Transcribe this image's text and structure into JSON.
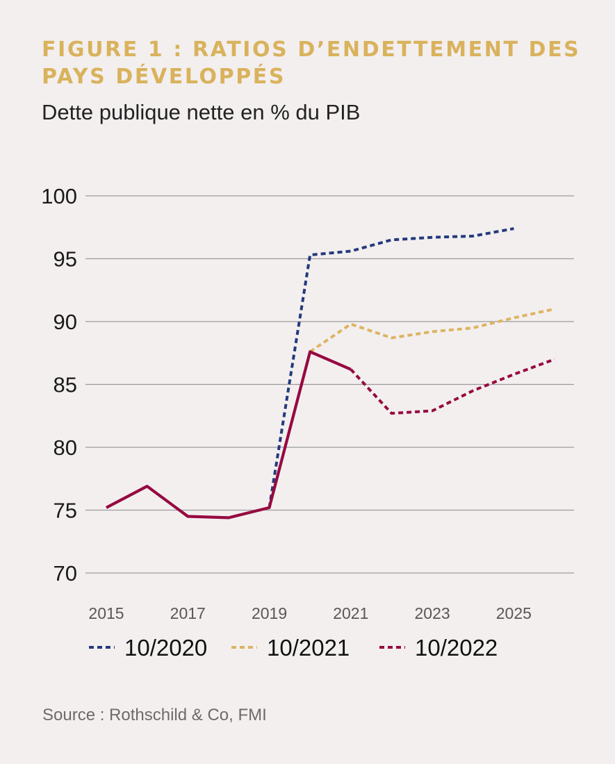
{
  "title": "FIGURE 1 : RATIOS D’ENDETTEMENT DES PAYS DÉVELOPPÉS",
  "subtitle": "Dette publique nette en % du PIB",
  "source": "Source : Rothschild & Co, FMI",
  "colors": {
    "background": "#f3efef",
    "title": "#d9b25c",
    "grid": "#9a9a9a",
    "series_10_2020": "#243a7c",
    "series_10_2021": "#ddb461",
    "series_10_2022": "#960a40"
  },
  "chart_data": {
    "type": "line",
    "title": "FIGURE 1 : RATIOS D’ENDETTEMENT DES PAYS DÉVELOPPÉS",
    "subtitle": "Dette publique nette en % du PIB",
    "xlabel": "",
    "ylabel": "",
    "xlim": [
      2015,
      2026
    ],
    "ylim": [
      70,
      100
    ],
    "yticks": [
      70,
      75,
      80,
      85,
      90,
      95,
      100
    ],
    "xticks": [
      2015,
      2017,
      2019,
      2021,
      2023,
      2025
    ],
    "grid": "horizontal",
    "legend_position": "bottom",
    "history": {
      "x": [
        2015,
        2016,
        2017,
        2018,
        2019,
        2020,
        2021
      ],
      "values": [
        75.2,
        76.9,
        74.5,
        74.4,
        75.2,
        87.6,
        86.2
      ]
    },
    "series": [
      {
        "name": "10/2020",
        "color": "#243a7c",
        "x": [
          2019,
          2020,
          2021,
          2022,
          2023,
          2024,
          2025
        ],
        "values": [
          75.2,
          95.3,
          95.6,
          96.5,
          96.7,
          96.8,
          97.4
        ]
      },
      {
        "name": "10/2021",
        "color": "#ddb461",
        "x": [
          2020,
          2021,
          2022,
          2023,
          2024,
          2025,
          2026
        ],
        "values": [
          87.6,
          89.8,
          88.7,
          89.2,
          89.5,
          90.3,
          91.0
        ]
      },
      {
        "name": "10/2022",
        "color": "#960a40",
        "x": [
          2021,
          2022,
          2023,
          2024,
          2025,
          2026
        ],
        "values": [
          86.2,
          82.7,
          82.9,
          84.5,
          85.8,
          87.0
        ]
      }
    ]
  }
}
